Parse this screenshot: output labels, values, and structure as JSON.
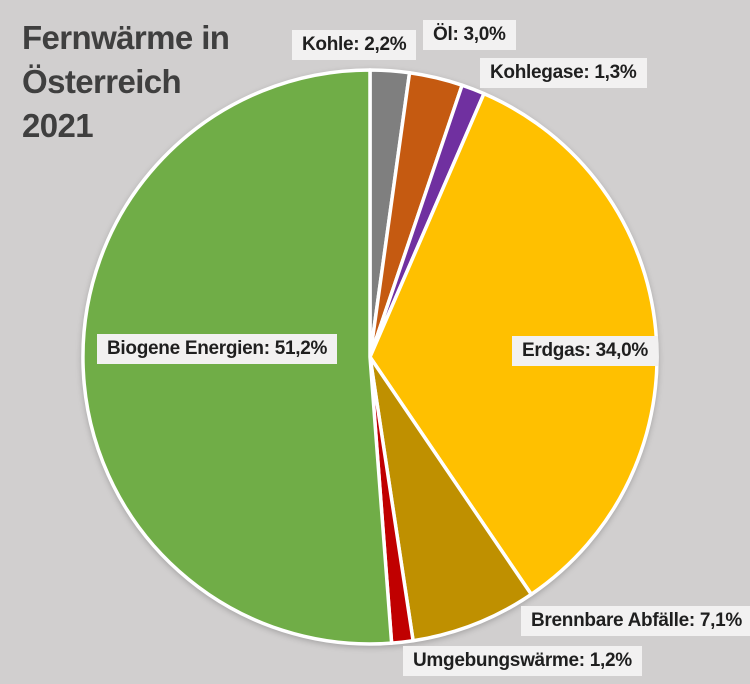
{
  "page": {
    "background_color": "#d1cfcf",
    "label_box_color": "#f2f1f1",
    "label_text_color": "#1f1f1f",
    "title_color": "#3f3f3f"
  },
  "header": {
    "title_lines": [
      "Fernwärme in",
      "Österreich",
      "2021"
    ]
  },
  "chart_data": {
    "type": "pie",
    "title": "Fernwärme in Österreich 2021",
    "unit": "%",
    "direction": "clockwise",
    "start_angle_deg": 0,
    "slice_border_color": "#ffffff",
    "legend_position": "none",
    "label_style": "boxed annotations around pie",
    "slices": [
      {
        "name": "Kohle",
        "value": 2.2,
        "label": "Kohle: 2,2%",
        "color": "#7f7f7f"
      },
      {
        "name": "Öl",
        "value": 3.0,
        "label": "Öl: 3,0%",
        "color": "#c55a11"
      },
      {
        "name": "Kohlegase",
        "value": 1.3,
        "label": "Kohlegase: 1,3%",
        "color": "#7030a0"
      },
      {
        "name": "Erdgas",
        "value": 34.0,
        "label": "Erdgas: 34,0%",
        "color": "#ffc000"
      },
      {
        "name": "Brennbare Abfälle",
        "value": 7.1,
        "label": "Brennbare Abfälle: 7,1%",
        "color": "#bf9000"
      },
      {
        "name": "Umgebungswärme",
        "value": 1.2,
        "label": "Umgebungswärme: 1,2%",
        "color": "#c00000"
      },
      {
        "name": "Biogene Energien",
        "value": 51.2,
        "label": "Biogene Energien: 51,2%",
        "color": "#70ad47"
      }
    ]
  }
}
